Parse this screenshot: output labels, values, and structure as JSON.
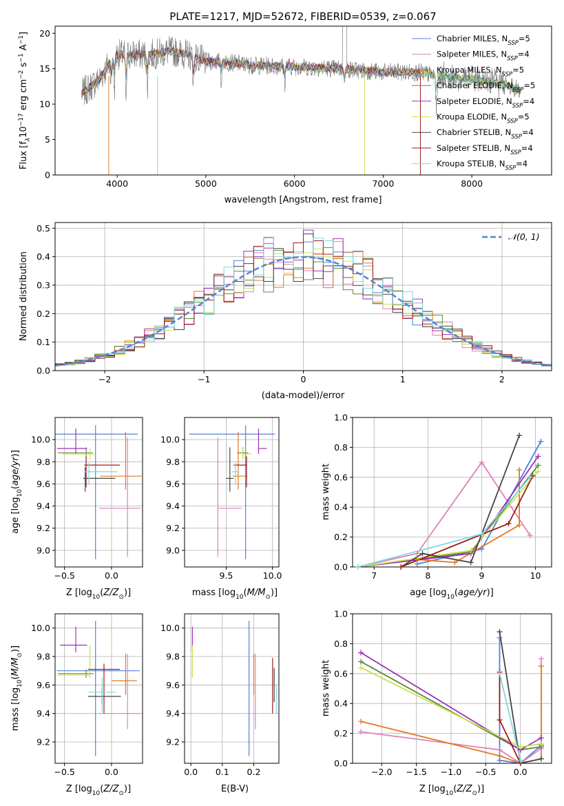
{
  "colors": {
    "Chabrier MILES": "#4f7fe0",
    "Salpeter MILES": "#e07fb8",
    "Kroupa MILES": "#e6761e",
    "Chabrier ELODIE": "#5a8a3a",
    "Salpeter ELODIE": "#9b30b8",
    "Kroupa ELODIE": "#c9e24a",
    "Chabrier STELIB": "#444444",
    "Salpeter STELIB": "#a01818",
    "Kroupa STELIB": "#7fd8e0",
    "spectrum": "#808080",
    "normal": "#4f86d0"
  },
  "chart_data": [
    {
      "id": "spectrum",
      "type": "line",
      "title": "PLATE=1217, MJD=52672, FIBERID=0539, z=0.067",
      "xlabel": "wavelength [Angstrom, rest frame]",
      "ylabel": "Flux [f",
      "ylabel_sub": "λ",
      "ylabel_rest": "10",
      "ylabel_exp1": "−17",
      "ylabel_mid": " erg cm",
      "ylabel_exp2": "−2",
      "ylabel_mid2": " s",
      "ylabel_exp3": "−1",
      "ylabel_end": " A",
      "ylabel_exp4": "−1",
      "ylabel_close": "]",
      "xlim": [
        3300,
        8900
      ],
      "ylim": [
        0,
        21
      ],
      "xticks": [
        4000,
        5000,
        6000,
        7000,
        8000
      ],
      "yticks": [
        0,
        5,
        10,
        15,
        20
      ],
      "grid": false,
      "legend_position": "top-right",
      "legend": [
        {
          "name": "Chabrier MILES",
          "sub": "SSP",
          "n": "=5"
        },
        {
          "name": "Salpeter MILES",
          "sub": "SSP",
          "n": "=4"
        },
        {
          "name": "Kroupa MILES",
          "sub": "SSP",
          "n": "=5"
        },
        {
          "name": "Chabrier ELODIE",
          "sub": "SSP",
          "n": "=5"
        },
        {
          "name": "Salpeter ELODIE",
          "sub": "SSP",
          "n": "=4"
        },
        {
          "name": "Kroupa ELODIE",
          "sub": "SSP",
          "n": "=5"
        },
        {
          "name": "Chabrier STELIB",
          "sub": "SSP",
          "n": "=4"
        },
        {
          "name": "Salpeter STELIB",
          "sub": "SSP",
          "n": "=4"
        },
        {
          "name": "Kroupa STELIB",
          "sub": "SSP",
          "n": "=4"
        }
      ],
      "continuum": [
        [
          3600,
          11.5
        ],
        [
          3700,
          12.5
        ],
        [
          3800,
          13.5
        ],
        [
          3900,
          15.5
        ],
        [
          4000,
          17
        ],
        [
          4200,
          17
        ],
        [
          4400,
          17
        ],
        [
          4600,
          17.5
        ],
        [
          4800,
          17
        ],
        [
          5000,
          16
        ],
        [
          5200,
          16
        ],
        [
          5500,
          15.5
        ],
        [
          6000,
          15.3
        ],
        [
          6500,
          15
        ],
        [
          7000,
          14.5
        ],
        [
          7400,
          14.5
        ],
        [
          7600,
          14
        ],
        [
          8000,
          13.5
        ],
        [
          8300,
          13
        ],
        [
          8550,
          12
        ]
      ],
      "dips": [
        [
          3934,
          3
        ],
        [
          3969,
          4.5
        ],
        [
          4101,
          7
        ],
        [
          4340,
          5
        ],
        [
          4861,
          4
        ],
        [
          5175,
          3
        ],
        [
          5890,
          2.5
        ],
        [
          6563,
          3
        ],
        [
          7600,
          5
        ]
      ]
    },
    {
      "id": "residuals",
      "type": "bar",
      "xlabel": "(data-model)/error",
      "ylabel": "Normed distribution",
      "legend_label": "𝒩(0, 1)",
      "legend_position": "top-right",
      "xlim": [
        -2.5,
        2.5
      ],
      "ylim": [
        0,
        0.52
      ],
      "xticks": [
        -2,
        -1,
        0,
        1,
        2
      ],
      "yticks": [
        0.0,
        0.1,
        0.2,
        0.3,
        0.4,
        0.5
      ],
      "grid": true,
      "bin_width": 0.1
    },
    {
      "id": "age_vs_Z",
      "type": "scatter",
      "xlabel": "Z [log",
      "xlabel_full": "Z [log₁₀(Z/Z☉)]",
      "ylabel_full": "age  [log₁₀(age/yr)]",
      "xlim": [
        -0.6,
        0.33
      ],
      "ylim": [
        8.85,
        10.2
      ],
      "xticks": [
        -0.5,
        0.0
      ],
      "yticks": [
        9.0,
        9.2,
        9.4,
        9.6,
        9.8,
        10.0
      ],
      "grid": true,
      "points": [
        {
          "series": "Chabrier MILES",
          "x": -0.17,
          "y": 10.05,
          "xerr": [
            0.55,
            0.45
          ],
          "yerr": [
            1.13,
            0.08
          ]
        },
        {
          "series": "Salpeter MILES",
          "x": 0.17,
          "y": 9.38,
          "xerr": [
            0.3,
            0.14
          ],
          "yerr": [
            0.44,
            0.64
          ]
        },
        {
          "series": "Kroupa MILES",
          "x": 0.15,
          "y": 9.67,
          "xerr": [
            0.27,
            0.17
          ],
          "yerr": [
            0.12,
            0.4
          ]
        },
        {
          "series": "Chabrier ELODIE",
          "x": -0.27,
          "y": 9.88,
          "xerr": [
            0.3,
            0.07
          ],
          "yerr": [
            0.05,
            0.05
          ]
        },
        {
          "series": "Salpeter ELODIE",
          "x": -0.38,
          "y": 9.92,
          "xerr": [
            0.2,
            0.12
          ],
          "yerr": [
            0.05,
            0.18
          ]
        },
        {
          "series": "Kroupa ELODIE",
          "x": -0.23,
          "y": 9.87,
          "xerr": [
            0.29,
            0.06
          ],
          "yerr": [
            0.05,
            0.05
          ]
        },
        {
          "series": "Chabrier STELIB",
          "x": -0.28,
          "y": 9.65,
          "xerr": [
            0.02,
            0.32
          ],
          "yerr": [
            0.12,
            0.1
          ]
        },
        {
          "series": "Salpeter STELIB",
          "x": -0.27,
          "y": 9.77,
          "xerr": [
            0.02,
            0.36
          ],
          "yerr": [
            0.2,
            0.08
          ]
        },
        {
          "series": "Kroupa STELIB",
          "x": -0.24,
          "y": 9.71,
          "xerr": [
            0.05,
            0.3
          ],
          "yerr": [
            0.12,
            0.08
          ]
        }
      ]
    },
    {
      "id": "age_vs_mass",
      "type": "scatter",
      "xlabel_full": "mass [log₁₀(M/M☉)]",
      "xlim": [
        9.05,
        10.07
      ],
      "ylim": [
        8.85,
        10.2
      ],
      "xticks": [
        9.5,
        10.0
      ],
      "yticks": [
        9.0,
        9.2,
        9.4,
        9.6,
        9.8,
        10.0
      ],
      "grid": true,
      "points": [
        {
          "series": "Chabrier MILES",
          "x": 9.71,
          "y": 10.05,
          "xerr": [
            0.61,
            0.32
          ],
          "yerr": [
            1.13,
            0.08
          ]
        },
        {
          "series": "Salpeter MILES",
          "x": 9.41,
          "y": 9.38,
          "xerr": [
            0.0,
            0.26
          ],
          "yerr": [
            0.44,
            0.64
          ]
        },
        {
          "series": "Kroupa MILES",
          "x": 9.63,
          "y": 9.67,
          "xerr": [
            0.06,
            0.1
          ],
          "yerr": [
            0.12,
            0.4
          ]
        },
        {
          "series": "Chabrier ELODIE",
          "x": 9.68,
          "y": 9.88,
          "xerr": [
            0.06,
            0.06
          ],
          "yerr": [
            0.05,
            0.05
          ]
        },
        {
          "series": "Salpeter ELODIE",
          "x": 9.85,
          "y": 9.92,
          "xerr": [
            0.0,
            0.09
          ],
          "yerr": [
            0.05,
            0.18
          ]
        },
        {
          "series": "Kroupa ELODIE",
          "x": 9.68,
          "y": 9.87,
          "xerr": [
            0.0,
            0.1
          ],
          "yerr": [
            0.05,
            0.05
          ]
        },
        {
          "series": "Chabrier STELIB",
          "x": 9.54,
          "y": 9.65,
          "xerr": [
            0.04,
            0.04
          ],
          "yerr": [
            0.12,
            0.28
          ]
        },
        {
          "series": "Salpeter STELIB",
          "x": 9.72,
          "y": 9.77,
          "xerr": [
            0.14,
            0.0
          ],
          "yerr": [
            0.2,
            0.08
          ]
        },
        {
          "series": "Kroupa STELIB",
          "x": 9.6,
          "y": 9.71,
          "xerr": [
            0.04,
            0.04
          ],
          "yerr": [
            0.12,
            0.08
          ]
        }
      ]
    },
    {
      "id": "weight_vs_age",
      "type": "line",
      "xlabel_full": "age  [log₁₀(age/yr)]",
      "ylabel": "mass weight",
      "xlim": [
        6.6,
        10.3
      ],
      "ylim": [
        0,
        1
      ],
      "xticks": [
        7,
        8,
        9,
        10
      ],
      "yticks": [
        0.0,
        0.2,
        0.4,
        0.6,
        0.8,
        1.0
      ],
      "grid": true,
      "series": [
        {
          "name": "Chabrier MILES",
          "x": [
            7.8,
            9.0,
            10.1
          ],
          "y": [
            0.02,
            0.12,
            0.84
          ]
        },
        {
          "name": "Salpeter MILES",
          "x": [
            6.7,
            7.8,
            9.0,
            9.9
          ],
          "y": [
            0.0,
            0.09,
            0.7,
            0.21
          ]
        },
        {
          "name": "Kroupa MILES",
          "x": [
            7.8,
            8.5,
            9.7,
            9.7
          ],
          "y": [
            0.05,
            0.03,
            0.28,
            0.65
          ]
        },
        {
          "name": "Chabrier ELODIE",
          "x": [
            6.7,
            8.8,
            10.05
          ],
          "y": [
            0.0,
            0.1,
            0.68
          ]
        },
        {
          "name": "Salpeter ELODIE",
          "x": [
            6.7,
            8.8,
            10.05
          ],
          "y": [
            0.0,
            0.09,
            0.74
          ]
        },
        {
          "name": "Kroupa ELODIE",
          "x": [
            6.7,
            8.8,
            10.05
          ],
          "y": [
            0.0,
            0.11,
            0.64
          ]
        },
        {
          "name": "Chabrier STELIB",
          "x": [
            7.5,
            7.9,
            8.8,
            9.7
          ],
          "y": [
            0.0,
            0.09,
            0.03,
            0.88
          ]
        },
        {
          "name": "Salpeter STELIB",
          "x": [
            7.5,
            9.5,
            9.95
          ],
          "y": [
            0.0,
            0.29,
            0.61
          ]
        },
        {
          "name": "Kroupa STELIB",
          "x": [
            6.7,
            9.0,
            9.9
          ],
          "y": [
            0.0,
            0.22,
            0.6
          ]
        }
      ]
    },
    {
      "id": "mass_vs_Z",
      "type": "scatter",
      "xlabel_full": "Z [log₁₀(Z/Z☉)]",
      "ylabel_full": "mass [log₁₀(M/M☉)]",
      "xlim": [
        -0.6,
        0.33
      ],
      "ylim": [
        9.05,
        10.1
      ],
      "xticks": [
        -0.5,
        0.0
      ],
      "yticks": [
        9.2,
        9.4,
        9.6,
        9.8,
        10.0
      ],
      "grid": true,
      "points": [
        {
          "series": "Chabrier MILES",
          "x": -0.17,
          "y": 9.7,
          "xerr": [
            0.41,
            0.47
          ],
          "yerr": [
            0.6,
            0.35
          ]
        },
        {
          "series": "Salpeter MILES",
          "x": 0.17,
          "y": 9.4,
          "xerr": [
            0.3,
            0.14
          ],
          "yerr": [
            0.11,
            0.42
          ]
        },
        {
          "series": "Kroupa MILES",
          "x": 0.15,
          "y": 9.63,
          "xerr": [
            0.15,
            0.12
          ],
          "yerr": [
            0.1,
            0.19
          ]
        },
        {
          "series": "Chabrier ELODIE",
          "x": -0.27,
          "y": 9.68,
          "xerr": [
            0.3,
            0.08
          ],
          "yerr": [
            0.03,
            0.03
          ]
        },
        {
          "series": "Salpeter ELODIE",
          "x": -0.38,
          "y": 9.88,
          "xerr": [
            0.17,
            0.12
          ],
          "yerr": [
            0.05,
            0.13
          ]
        },
        {
          "series": "Kroupa ELODIE",
          "x": -0.23,
          "y": 9.67,
          "xerr": [
            0.34,
            0.0
          ],
          "yerr": [
            0.02,
            0.21
          ]
        },
        {
          "series": "Chabrier STELIB",
          "x": -0.1,
          "y": 9.52,
          "xerr": [
            0.15,
            0.2
          ],
          "yerr": [
            0.06,
            0.06
          ]
        },
        {
          "series": "Salpeter STELIB",
          "x": -0.08,
          "y": 9.71,
          "xerr": [
            0.17,
            0.17
          ],
          "yerr": [
            0.31,
            0.04
          ]
        },
        {
          "series": "Kroupa STELIB",
          "x": -0.1,
          "y": 9.55,
          "xerr": [
            0.15,
            0.15
          ],
          "yerr": [
            0.14,
            0.1
          ]
        }
      ]
    },
    {
      "id": "mass_vs_EBV",
      "type": "scatter",
      "xlabel": "E(B-V)",
      "xlim": [
        -0.02,
        0.28
      ],
      "ylim": [
        9.05,
        10.1
      ],
      "xticks": [
        0.0,
        0.1,
        0.2
      ],
      "yticks": [
        9.2,
        9.4,
        9.6,
        9.8,
        10.0
      ],
      "grid": true,
      "points": [
        {
          "series": "Chabrier MILES",
          "x": 0.185,
          "y": 9.7,
          "yerr": [
            0.6,
            0.35
          ]
        },
        {
          "series": "Salpeter MILES",
          "x": 0.205,
          "y": 9.4,
          "yerr": [
            0.11,
            0.42
          ]
        },
        {
          "series": "Kroupa MILES",
          "x": 0.2,
          "y": 9.63,
          "yerr": [
            0.1,
            0.19
          ]
        },
        {
          "series": "Chabrier ELODIE",
          "x": 0.005,
          "y": 9.68,
          "yerr": [
            0.03,
            0.03
          ]
        },
        {
          "series": "Salpeter ELODIE",
          "x": 0.005,
          "y": 9.88,
          "yerr": [
            0.05,
            0.13
          ]
        },
        {
          "series": "Kroupa ELODIE",
          "x": 0.005,
          "y": 9.67,
          "yerr": [
            0.02,
            0.21
          ]
        },
        {
          "series": "Chabrier STELIB",
          "x": 0.265,
          "y": 9.6,
          "yerr": [
            0.12,
            0.12
          ]
        },
        {
          "series": "Salpeter STELIB",
          "x": 0.26,
          "y": 9.71,
          "yerr": [
            0.31,
            0.08
          ]
        },
        {
          "series": "Kroupa STELIB",
          "x": 0.272,
          "y": 9.5,
          "yerr": [
            0.1,
            0.1
          ]
        }
      ]
    },
    {
      "id": "weight_vs_Z",
      "type": "line",
      "xlabel_full": "Z [log₁₀(Z/Z☉)]",
      "ylabel": "mass weight",
      "xlim": [
        -2.42,
        0.45
      ],
      "ylim": [
        0,
        1
      ],
      "xticks": [
        -2.0,
        -1.5,
        -1.0,
        -0.5,
        0.0
      ],
      "yticks": [
        0.0,
        0.2,
        0.4,
        0.6,
        0.8,
        1.0
      ],
      "grid": true,
      "series": [
        {
          "name": "Chabrier MILES",
          "x": [
            -0.3,
            -0.3,
            0.0,
            0.3
          ],
          "y": [
            0.84,
            0.02,
            0.0,
            0.12
          ]
        },
        {
          "name": "Salpeter MILES",
          "x": [
            -2.3,
            -0.3,
            0.0,
            0.3,
            0.3
          ],
          "y": [
            0.21,
            0.09,
            0.0,
            0.1,
            0.7
          ]
        },
        {
          "name": "Kroupa MILES",
          "x": [
            -2.3,
            -0.3,
            0.0,
            0.3,
            0.3
          ],
          "y": [
            0.28,
            0.05,
            0.0,
            0.03,
            0.65
          ]
        },
        {
          "name": "Chabrier ELODIE",
          "x": [
            -2.3,
            0.0,
            0.3
          ],
          "y": [
            0.68,
            0.09,
            0.11
          ]
        },
        {
          "name": "Salpeter ELODIE",
          "x": [
            -2.3,
            0.0,
            0.3
          ],
          "y": [
            0.74,
            0.09,
            0.17
          ]
        },
        {
          "name": "Kroupa ELODIE",
          "x": [
            -2.3,
            0.0,
            0.3
          ],
          "y": [
            0.64,
            0.11,
            0.13
          ]
        },
        {
          "name": "Chabrier STELIB",
          "x": [
            -0.3,
            0.0,
            0.3
          ],
          "y": [
            0.88,
            0.0,
            0.03
          ]
        },
        {
          "name": "Salpeter STELIB",
          "x": [
            -0.3,
            -0.3,
            0.0
          ],
          "y": [
            0.61,
            0.29,
            0.0
          ]
        },
        {
          "name": "Kroupa STELIB",
          "x": [
            -0.3,
            0.0
          ],
          "y": [
            0.6,
            0.02
          ]
        }
      ]
    }
  ]
}
